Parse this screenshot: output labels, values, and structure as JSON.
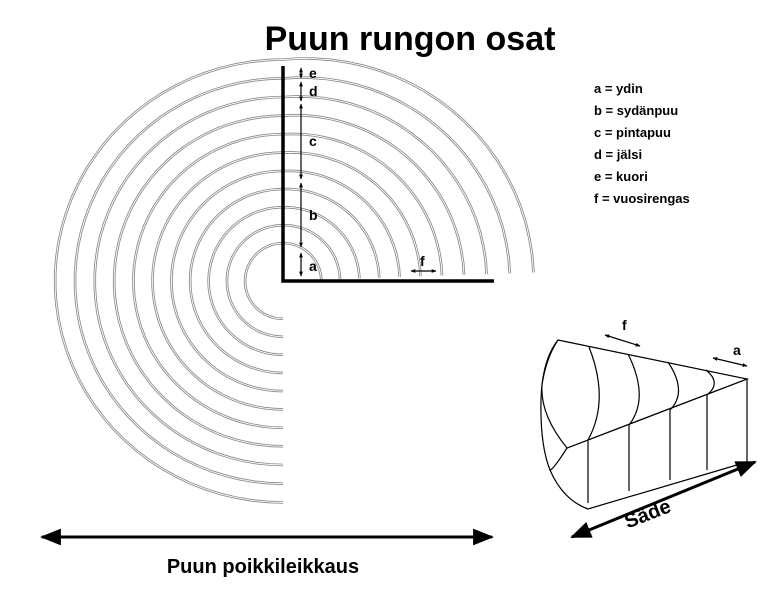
{
  "diagram": {
    "title": "Puun rungon osat",
    "caption_bottom": "Puun poikkileikkaus",
    "radius_label": "Säde",
    "legend": [
      "a = ydin",
      "b = sydänpuu",
      "c = pintapuu",
      "d = jälsi",
      "e = kuori",
      "f = vuosirengas"
    ],
    "segment_labels": {
      "a": "a",
      "b": "b",
      "c": "c",
      "d": "d",
      "e": "e",
      "f": "f"
    },
    "wedge_labels": {
      "f": "f",
      "a": "a"
    },
    "ring_count": 11
  }
}
